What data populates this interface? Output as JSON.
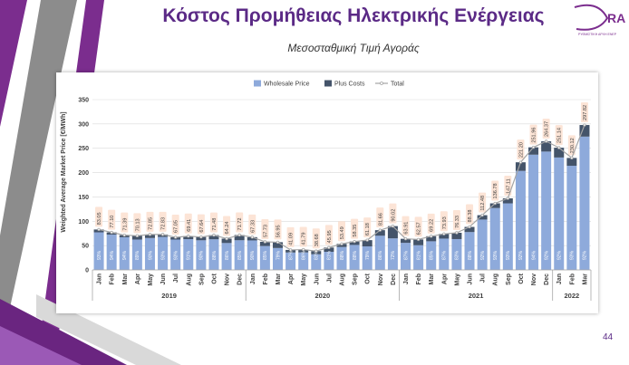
{
  "slide": {
    "title": "Κόστος Προμήθειας Ηλεκτρικής Ενέργειας",
    "subtitle": "Μεσοσταθμική Τιμή Αγοράς",
    "page_number": "44",
    "logo_text": "RA",
    "logo_subtext": "ΡΥΘΜΙΣΤΙΚΗ ΑΡΧΗ ΕΝΕΡ",
    "accent_color": "#7b2d8e"
  },
  "chart_data": {
    "type": "bar",
    "ylabel": "Weighted Average Market Price [€/MWh]",
    "ylim": [
      0,
      350
    ],
    "yticks": [
      0,
      50,
      100,
      150,
      200,
      250,
      300,
      350
    ],
    "grid": true,
    "legend_position": "top",
    "categories": [
      "Jan",
      "Feb",
      "Mar",
      "Apr",
      "May",
      "Jun",
      "Jul",
      "Aug",
      "Sep",
      "Oct",
      "Nov",
      "Dec",
      "Jan",
      "Feb",
      "Mar",
      "Apr",
      "May",
      "Jun",
      "Jul",
      "Aug",
      "Sep",
      "Oct",
      "Nov",
      "Dec",
      "Jan",
      "Feb",
      "Mar",
      "Apr",
      "May",
      "Jun",
      "Jul",
      "Aug",
      "Sep",
      "Oct",
      "Nov",
      "Dec",
      "Jan",
      "Feb",
      "Mar"
    ],
    "years": [
      {
        "label": "2019",
        "count": 12
      },
      {
        "label": "2020",
        "count": 12
      },
      {
        "label": "2021",
        "count": 12
      },
      {
        "label": "2022",
        "count": 3
      }
    ],
    "series": [
      {
        "name": "Wholesale Price",
        "color": "#8eaadb",
        "type": "bar"
      },
      {
        "name": "Plus Costs",
        "color": "#44546a",
        "type": "bar"
      },
      {
        "name": "Total",
        "color": "#a5a5a5",
        "type": "line"
      }
    ],
    "totals": [
      "83.05",
      "77.10",
      "71.39",
      "70.13",
      "72.85",
      "72.83",
      "67.05",
      "69.41",
      "67.64",
      "71.48",
      "64.24",
      "71.72",
      "67.33",
      "57.73",
      "56.95",
      "41.09",
      "41.79",
      "38.68",
      "45.95",
      "53.49",
      "58.35",
      "61.18",
      "81.66",
      "90.02",
      "63.91",
      "62.57",
      "69.22",
      "73.93",
      "76.33",
      "88.38",
      "112.48",
      "136.78",
      "147.11",
      "221.20",
      "251.96",
      "264.37",
      "251.14",
      "230.12",
      "297.82"
    ],
    "wholesale_share": [
      "93%",
      "94%",
      "94%",
      "89%",
      "90%",
      "93%",
      "93%",
      "91%",
      "90%",
      "88%",
      "86%",
      "85%",
      "90%",
      "85%",
      "79%",
      "87%",
      "86%",
      "83%",
      "81%",
      "88%",
      "88%",
      "79%",
      "86%",
      "72%",
      "87%",
      "81%",
      "85%",
      "87%",
      "83%",
      "88%",
      "92%",
      "93%",
      "93%",
      "92%",
      "94%",
      "92%",
      "92%",
      "93%",
      "92%"
    ]
  }
}
